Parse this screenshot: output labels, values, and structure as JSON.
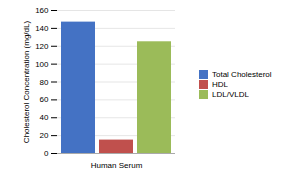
{
  "chart_data": {
    "type": "bar",
    "categories": [
      "Human Serum"
    ],
    "series": [
      {
        "name": "Total Cholesterol",
        "color": "#4472C4",
        "values": [
          147
        ]
      },
      {
        "name": "HDL",
        "color": "#C0504D",
        "values": [
          15
        ]
      },
      {
        "name": "LDL/VLDL",
        "color": "#9BBB59",
        "values": [
          125
        ]
      }
    ],
    "ylabel": "Cholesterol Concentration (mg/dL)",
    "ylim": [
      0,
      160
    ],
    "yticks": [
      0,
      20,
      40,
      60,
      80,
      100,
      120,
      140,
      160
    ],
    "grid": true,
    "legend": "right"
  }
}
